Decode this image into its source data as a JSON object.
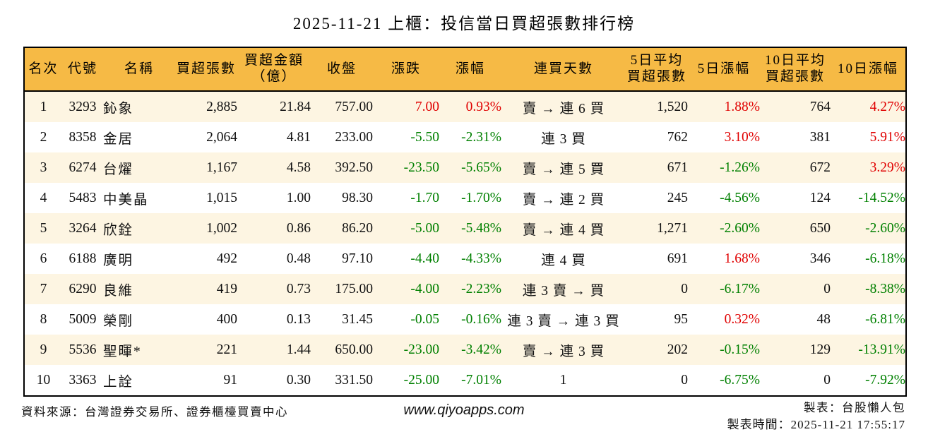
{
  "title": "2025-11-21 上櫃：投信當日買超張數排行榜",
  "chart_data": {
    "type": "table",
    "title": "2025-11-21 上櫃：投信當日買超張數排行榜",
    "columns": [
      "名次",
      "代號",
      "名稱",
      "買超張數",
      "買超金額\n（億）",
      "收盤",
      "漲跌",
      "漲幅",
      "連買天數",
      "5日平均\n買超張數",
      "5日漲幅",
      "10日平均\n買超張數",
      "10日漲幅"
    ],
    "rows": [
      [
        "1",
        "3293",
        "鈊象",
        "2,885",
        "21.84",
        "757.00",
        "7.00",
        "0.93%",
        "賣 → 連 6 買",
        "1,520",
        "1.88%",
        "764",
        "4.27%"
      ],
      [
        "2",
        "8358",
        "金居",
        "2,064",
        "4.81",
        "233.00",
        "-5.50",
        "-2.31%",
        "連 3 買",
        "762",
        "3.10%",
        "381",
        "5.91%"
      ],
      [
        "3",
        "6274",
        "台燿",
        "1,167",
        "4.58",
        "392.50",
        "-23.50",
        "-5.65%",
        "賣 → 連 5 買",
        "671",
        "-1.26%",
        "672",
        "3.29%"
      ],
      [
        "4",
        "5483",
        "中美晶",
        "1,015",
        "1.00",
        "98.30",
        "-1.70",
        "-1.70%",
        "賣 → 連 2 買",
        "245",
        "-4.56%",
        "124",
        "-14.52%"
      ],
      [
        "5",
        "3264",
        "欣銓",
        "1,002",
        "0.86",
        "86.20",
        "-5.00",
        "-5.48%",
        "賣 → 連 4 買",
        "1,271",
        "-2.60%",
        "650",
        "-2.60%"
      ],
      [
        "6",
        "6188",
        "廣明",
        "492",
        "0.48",
        "97.10",
        "-4.40",
        "-4.33%",
        "連 4 買",
        "691",
        "1.68%",
        "346",
        "-6.18%"
      ],
      [
        "7",
        "6290",
        "良維",
        "419",
        "0.73",
        "175.00",
        "-4.00",
        "-2.23%",
        "連 3 賣 → 買",
        "0",
        "-6.17%",
        "0",
        "-8.38%"
      ],
      [
        "8",
        "5009",
        "榮剛",
        "400",
        "0.13",
        "31.45",
        "-0.05",
        "-0.16%",
        "連 3 賣 → 連 3 買",
        "95",
        "0.32%",
        "48",
        "-6.81%"
      ],
      [
        "9",
        "5536",
        "聖暉*",
        "221",
        "1.44",
        "650.00",
        "-23.00",
        "-3.42%",
        "賣 → 連 3 買",
        "202",
        "-0.15%",
        "129",
        "-13.91%"
      ],
      [
        "10",
        "3363",
        "上詮",
        "91",
        "0.30",
        "331.50",
        "-25.00",
        "-7.01%",
        "1",
        "0",
        "-6.75%",
        "0",
        "-7.92%"
      ]
    ]
  },
  "footer": {
    "source": "資料來源：台灣證券交易所、證券櫃檯買賣中心",
    "website": "www.qiyoapps.com",
    "author": "製表：台股懶人包",
    "generated_at": "製表時間：2025-11-21 17:55:17"
  },
  "colors": {
    "up": "#e00000",
    "down": "#008000",
    "header_bg": "#f6ba45",
    "row_alt_bg": "#fdf5e2",
    "border": "#000000"
  }
}
